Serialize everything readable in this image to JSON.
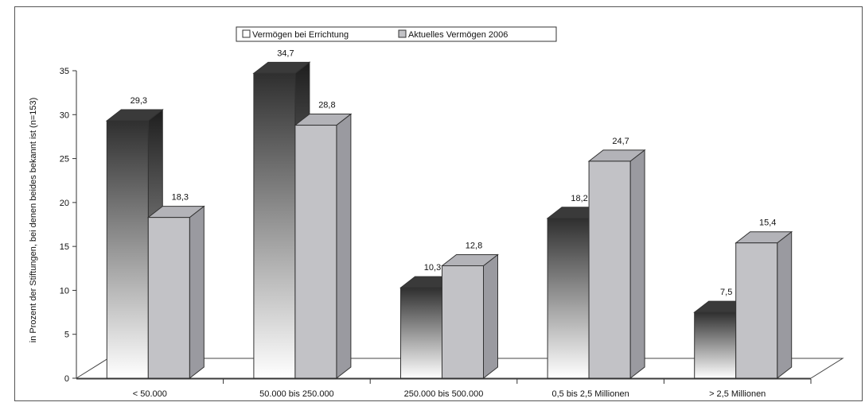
{
  "chart_data": {
    "type": "bar",
    "categories": [
      "< 50.000",
      "50.000 bis 250.000",
      "250.000 bis 500.000",
      "0,5 bis 2,5 Millionen",
      "> 2,5 Millionen"
    ],
    "series": [
      {
        "name": "Vermögen bei Errichtung",
        "values": [
          29.3,
          34.7,
          10.3,
          18.2,
          7.5
        ],
        "labels": [
          "29,3",
          "34,7",
          "10,3",
          "18,2",
          "7,5"
        ]
      },
      {
        "name": "Aktuelles Vermögen 2006",
        "values": [
          18.3,
          28.8,
          12.8,
          24.7,
          15.4
        ],
        "labels": [
          "18,3",
          "28,8",
          "12,8",
          "24,7",
          "15,4"
        ]
      }
    ],
    "ylabel": "in Prozent der Stiftungen, bei denen beides bekannt ist (n=153)",
    "ylim": [
      0,
      35
    ],
    "yticks": [
      "0",
      "5",
      "10",
      "15",
      "20",
      "25",
      "30",
      "35"
    ],
    "legend_position": "top-center",
    "grid": false
  },
  "colors": {
    "series1_dark": "#2f2f2f",
    "series1_light": "#ffffff",
    "series2_front": "#c2c2c6",
    "series2_side": "#9a9aa0",
    "series2_top": "#b3b3b8"
  }
}
